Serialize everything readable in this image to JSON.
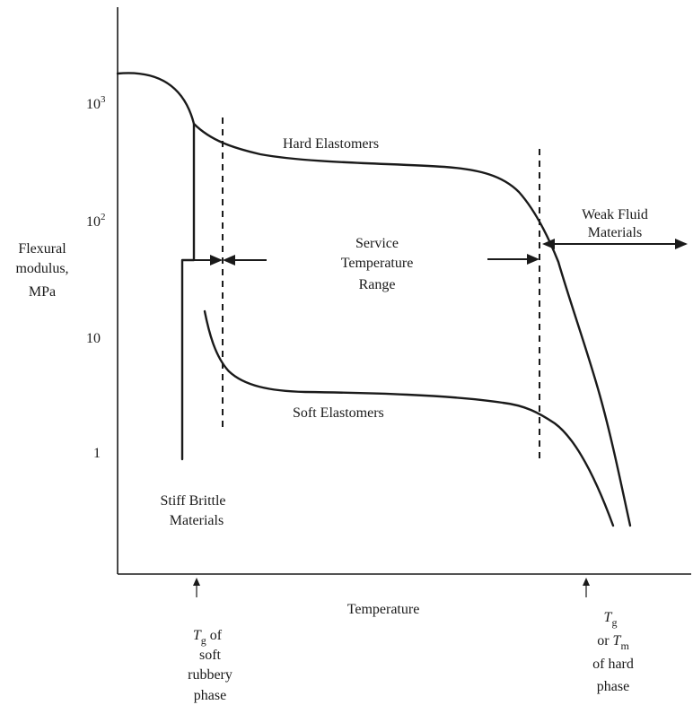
{
  "chart_data": {
    "type": "line",
    "y_scale": "log",
    "ylabel": [
      "Flexural",
      "modulus,",
      "MPa"
    ],
    "xlabel": "Temperature",
    "y_ticks": [
      {
        "value": 1000,
        "base": "10",
        "exp": "3"
      },
      {
        "value": 100,
        "base": "10",
        "exp": "2"
      },
      {
        "value": 10,
        "text": "10"
      },
      {
        "value": 1,
        "text": "1"
      }
    ],
    "series": [
      {
        "name": "Hard Elastomers"
      },
      {
        "name": "Soft Elastomers"
      }
    ],
    "regions": {
      "service": [
        "Service",
        "Temperature",
        "Range"
      ],
      "weak_fluid": [
        "Weak Fluid",
        "Materials"
      ],
      "stiff_brittle": [
        "Stiff Brittle",
        "Materials"
      ]
    },
    "markers": {
      "tg_soft": {
        "symbol": "T",
        "sub": "g",
        "rest": " of",
        "lines": [
          "soft",
          "rubbery",
          "phase"
        ]
      },
      "tg_hard": {
        "symbol": "T",
        "sub": "g",
        "or_text": "or ",
        "symbol2": "T",
        "sub2": "m",
        "lines": [
          "of hard",
          "phase"
        ]
      }
    }
  }
}
